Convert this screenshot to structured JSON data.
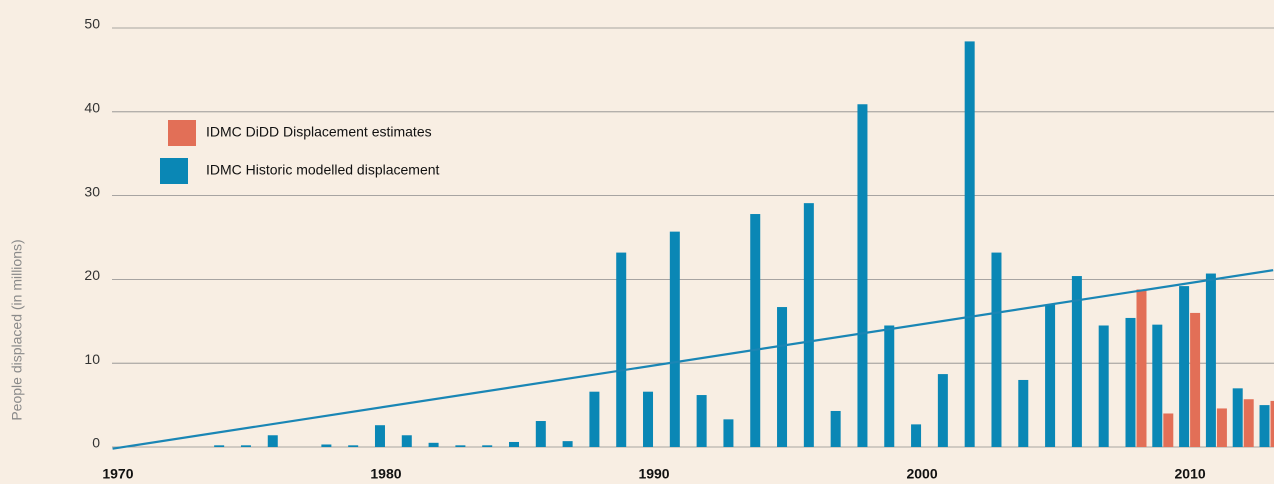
{
  "chart_data": {
    "type": "bar",
    "y_label": "People displaced (in millions)",
    "xlim": [
      1965.6,
      2013.13
    ],
    "ylim": [
      0,
      50
    ],
    "xticks": [
      1970,
      1980,
      1990,
      2000,
      2010
    ],
    "yticks": [
      0,
      10,
      20,
      30,
      40,
      50
    ],
    "grid": true,
    "legend": "upper left",
    "series": [
      {
        "name": "IDMC DiDD Displacement estimates",
        "color": "#e26f57",
        "x": [
          2008,
          2009,
          2010,
          2011,
          2012,
          2013
        ],
        "values": [
          18.8,
          4.0,
          16.0,
          4.6,
          5.7,
          5.5
        ]
      },
      {
        "name": "IDMC Historic modelled displacement",
        "color": "#0a87b5",
        "x": [
          1974,
          1975,
          1976,
          1978,
          1979,
          1980,
          1981,
          1982,
          1983,
          1984,
          1985,
          1986,
          1987,
          1988,
          1989,
          1990,
          1991,
          1992,
          1993,
          1994,
          1995,
          1996,
          1997,
          1998,
          1999,
          2000,
          2001,
          2002,
          2003,
          2004,
          2005,
          2006,
          2007,
          2008,
          2009,
          2010,
          2011,
          2012,
          2013
        ],
        "values": [
          0.2,
          0.2,
          1.4,
          0.3,
          0.2,
          2.6,
          1.4,
          0.5,
          0.2,
          0.2,
          0.6,
          3.1,
          0.7,
          6.6,
          23.2,
          6.6,
          25.7,
          6.2,
          3.3,
          27.8,
          16.7,
          29.1,
          4.3,
          40.9,
          14.5,
          2.7,
          8.7,
          48.4,
          23.2,
          8.0,
          17.0,
          20.4,
          14.5,
          15.4,
          14.6,
          19.2,
          20.7,
          7.0,
          5.0
        ]
      }
    ],
    "trend": {
      "color": "#1a86b5",
      "x": [
        1969.8,
        2013.1
      ],
      "values": [
        -0.2,
        21.1
      ]
    }
  }
}
